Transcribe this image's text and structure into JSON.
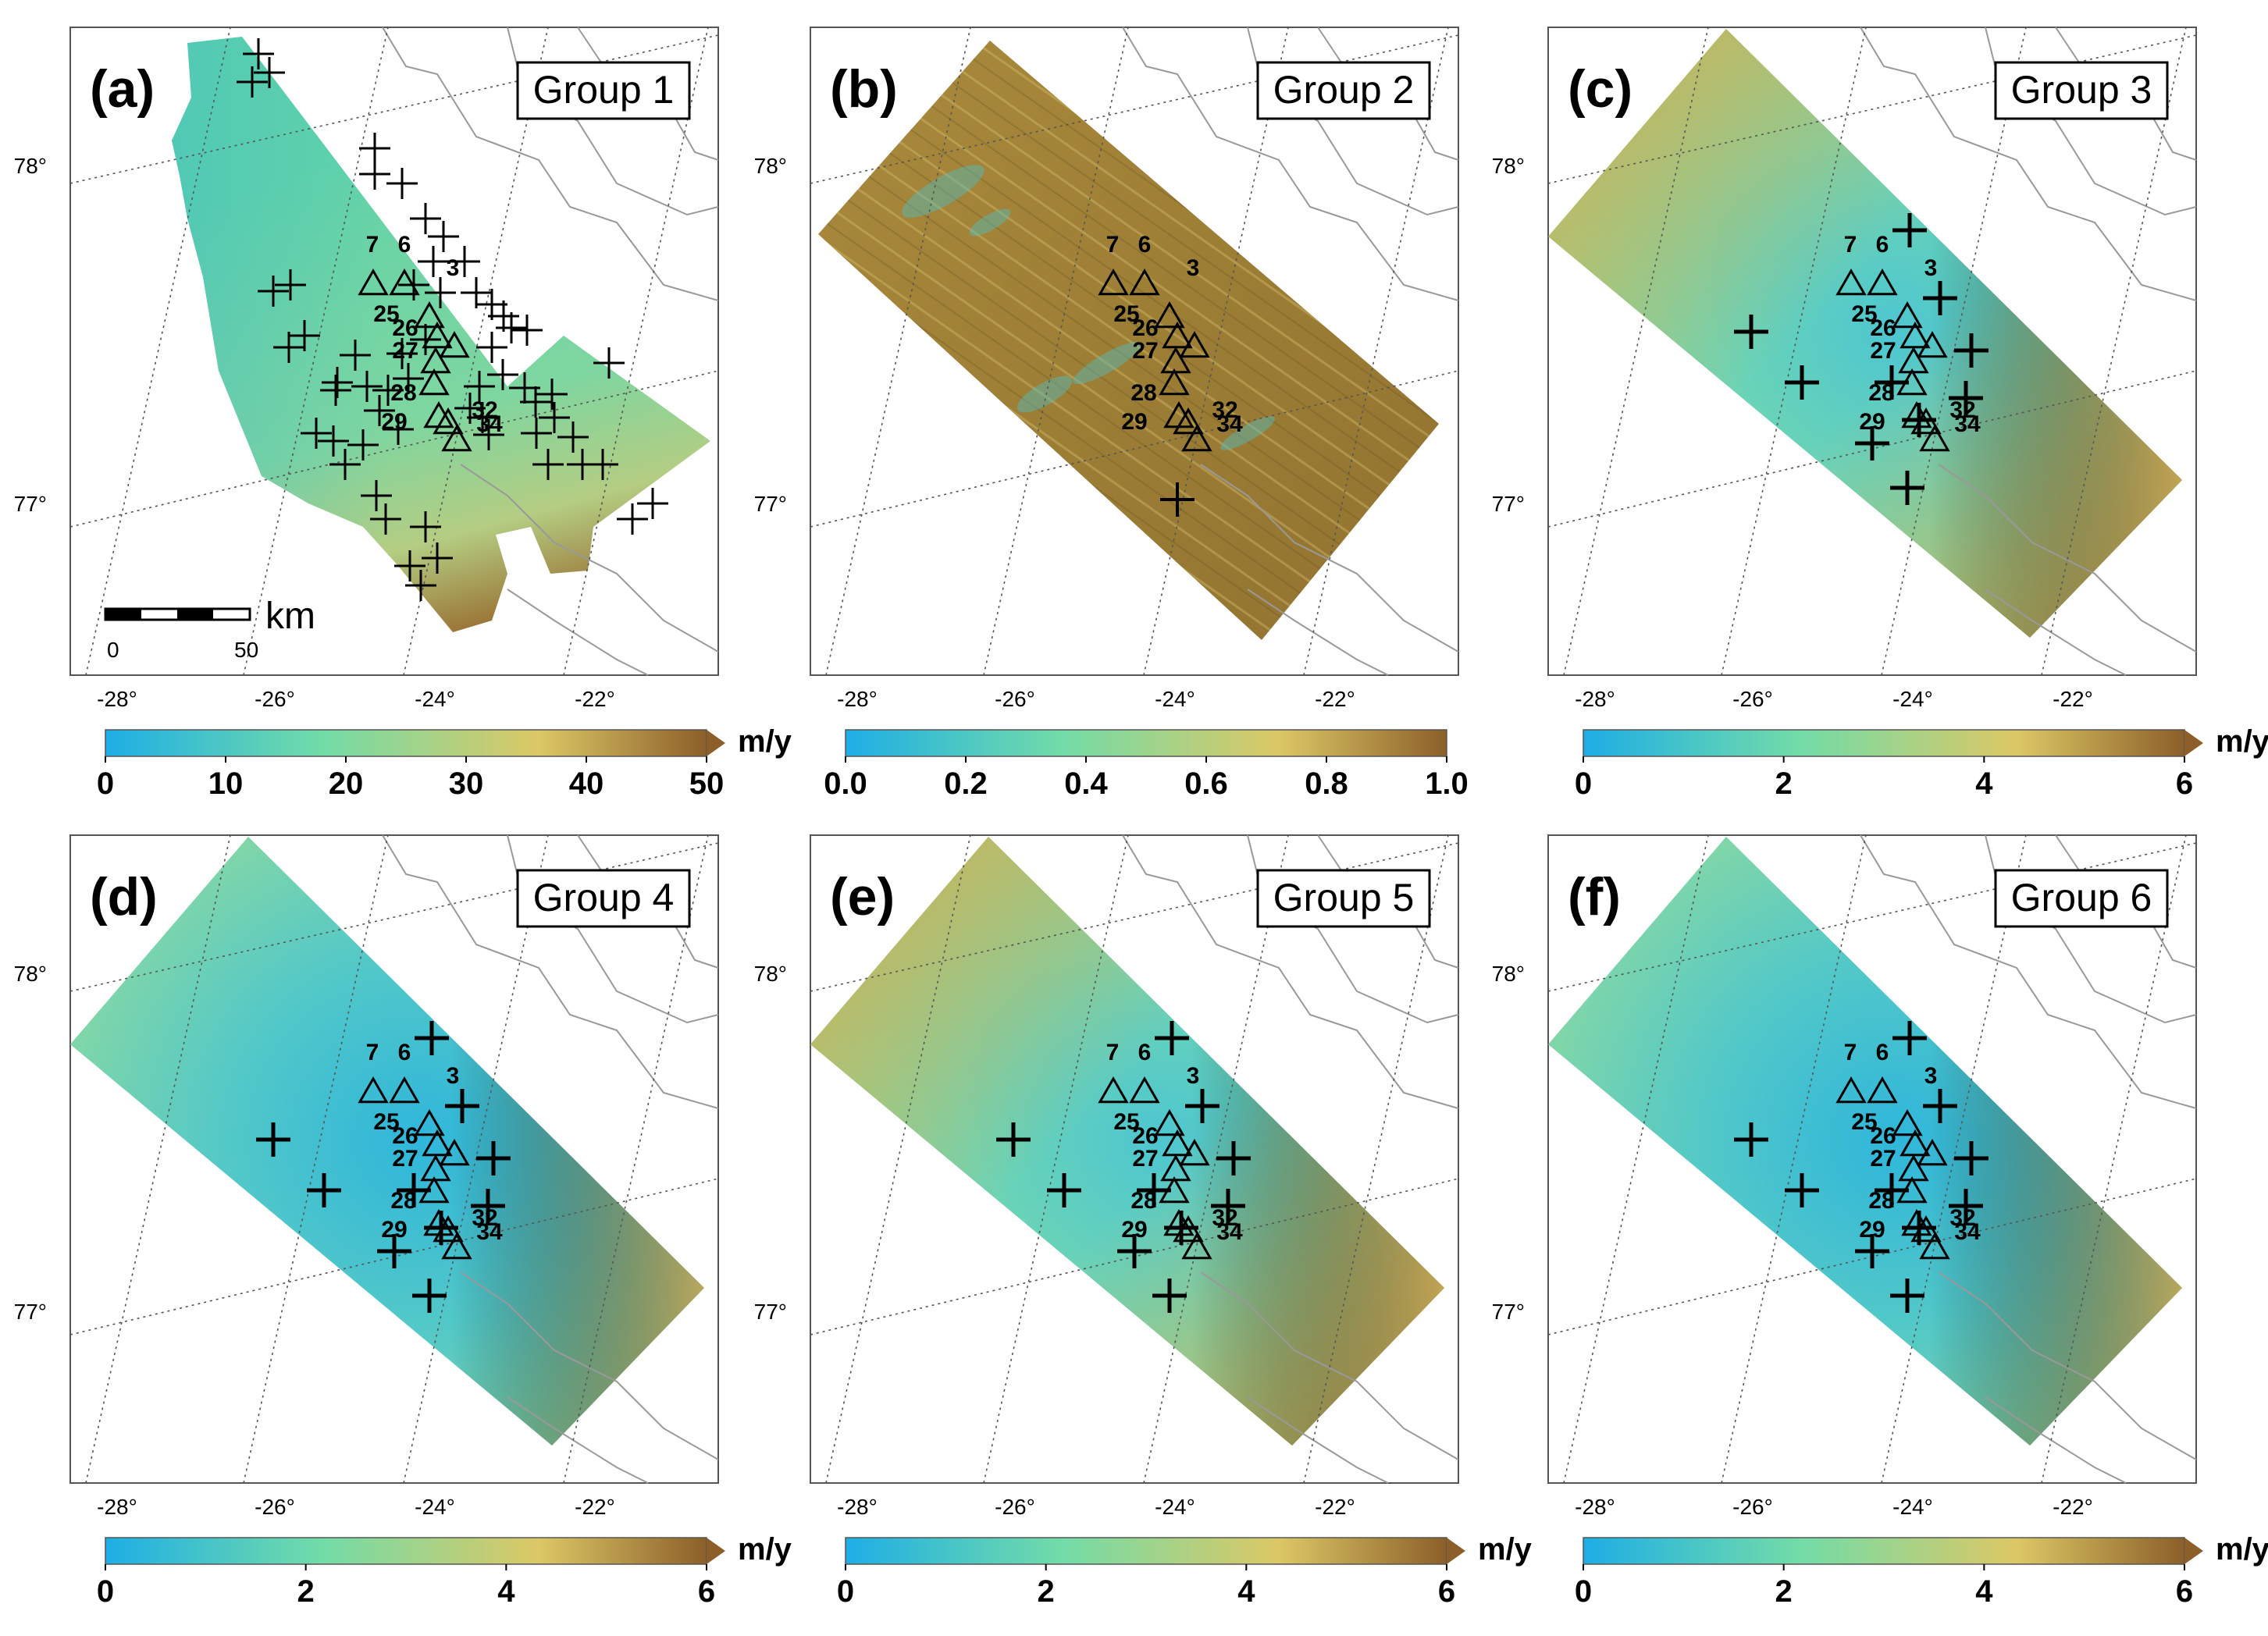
{
  "figure": {
    "lat_labels": [
      "78°",
      "77°"
    ],
    "lon_labels": [
      "-28°",
      "-26°",
      "-24°",
      "-22°"
    ],
    "station_labels": [
      "7",
      "6",
      "3",
      "25",
      "26",
      "27",
      "28",
      "29",
      "32",
      "34"
    ],
    "colors": {
      "ramp": [
        "#1eaee6",
        "#72dca8",
        "#dcc865",
        "#8c5f2a"
      ],
      "map_frame": "#555555",
      "coast_line": "#999999",
      "marker": "#000000"
    },
    "scale_bar": {
      "ticks": [
        "0",
        "50"
      ],
      "unit": "km"
    },
    "panels": [
      {
        "id": "a",
        "tag": "(a)",
        "group": "Group 1",
        "unit": "m/y",
        "ticks": [
          "0",
          "10",
          "20",
          "30",
          "40",
          "50"
        ],
        "range": [
          0,
          50
        ],
        "arrow": true,
        "style": "group1"
      },
      {
        "id": "b",
        "tag": "(b)",
        "group": "Group 2",
        "unit": "",
        "ticks": [
          "0.0",
          "0.2",
          "0.4",
          "0.6",
          "0.8",
          "1.0"
        ],
        "range": [
          0,
          1
        ],
        "arrow": false,
        "style": "group2"
      },
      {
        "id": "c",
        "tag": "(c)",
        "group": "Group 3",
        "unit": "m/y",
        "ticks": [
          "0",
          "2",
          "4",
          "6"
        ],
        "range": [
          0,
          6
        ],
        "arrow": true,
        "style": "cornersHigh"
      },
      {
        "id": "d",
        "tag": "(d)",
        "group": "Group 4",
        "unit": "m/y",
        "ticks": [
          "0",
          "2",
          "4",
          "6"
        ],
        "range": [
          0,
          6
        ],
        "arrow": true,
        "style": "smooth"
      },
      {
        "id": "e",
        "tag": "(e)",
        "group": "Group 5",
        "unit": "m/y",
        "ticks": [
          "0",
          "2",
          "4",
          "6"
        ],
        "range": [
          0,
          6
        ],
        "arrow": true,
        "style": "cornersHigh"
      },
      {
        "id": "f",
        "tag": "(f)",
        "group": "Group 6",
        "unit": "m/y",
        "ticks": [
          "0",
          "2",
          "4",
          "6"
        ],
        "range": [
          0,
          6
        ],
        "arrow": true,
        "style": "smooth"
      }
    ]
  }
}
